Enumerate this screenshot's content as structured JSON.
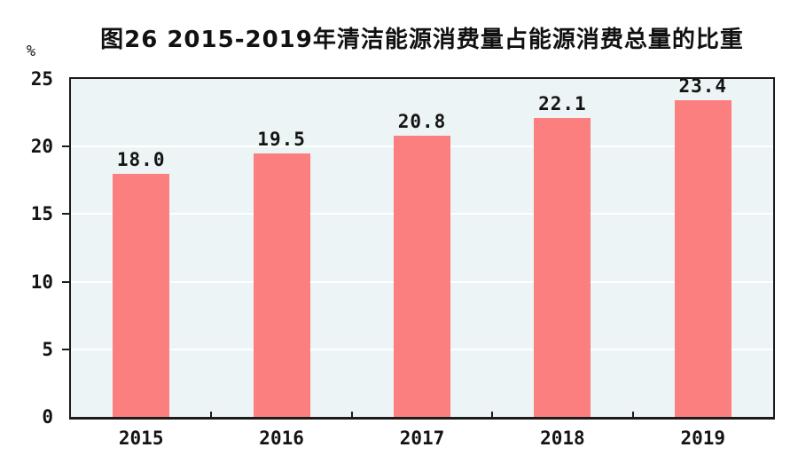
{
  "figure": {
    "title": "图26  2015-2019年清洁能源消费量占能源消费总量的比重",
    "unit_label": "%"
  },
  "chart_data": {
    "type": "bar",
    "title": "图26  2015-2019年清洁能源消费量占能源消费总量的比重",
    "categories": [
      "2015",
      "2016",
      "2017",
      "2018",
      "2019"
    ],
    "values": [
      18.0,
      19.5,
      20.8,
      22.1,
      23.4
    ],
    "value_labels": [
      "18.0",
      "19.5",
      "20.8",
      "22.1",
      "23.4"
    ],
    "xlabel": "",
    "ylabel": "%",
    "ylim": [
      0,
      25
    ],
    "yticks": [
      0,
      5,
      10,
      15,
      20,
      25
    ],
    "grid": "horizontal-white-lines",
    "legend": "none",
    "colors": {
      "bar": "#FB7F7F",
      "plot_background": "#EDF4F6",
      "axis": "#1B1B1B",
      "gridline": "#FFFFFF",
      "text": "#141414",
      "page_background": "#FFFFFF"
    }
  }
}
